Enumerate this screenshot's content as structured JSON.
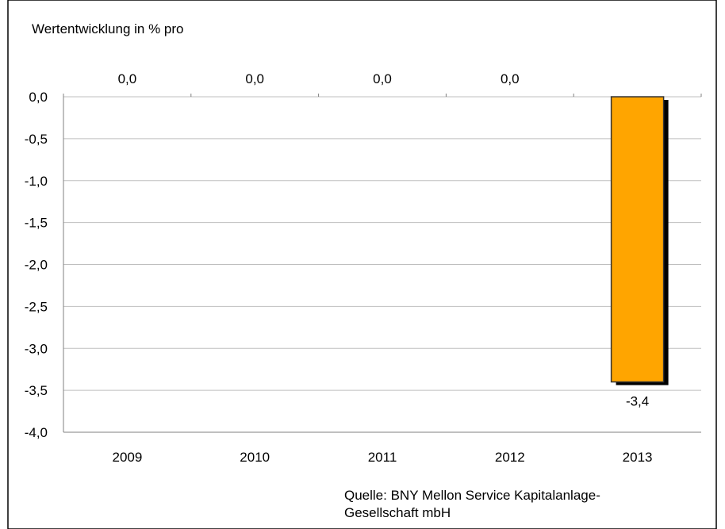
{
  "chart_data": {
    "type": "bar",
    "title": "",
    "ylabel": "Wertentwicklung in % pro",
    "xlabel": "",
    "categories": [
      "2009",
      "2010",
      "2011",
      "2012",
      "2013"
    ],
    "series": [
      {
        "values": [
          0.0,
          0.0,
          0.0,
          0.0,
          -3.4
        ]
      }
    ],
    "data_labels": [
      "0,0",
      "0,0",
      "0,0",
      "0,0",
      "-3,4"
    ],
    "ylim": [
      -4.0,
      0.0
    ],
    "yticks": [
      0.0,
      -0.5,
      -1.0,
      -1.5,
      -2.0,
      -2.5,
      -3.0,
      -3.5,
      -4.0
    ],
    "ytick_labels": [
      "0,0",
      "-0,5",
      "-1,0",
      "-1,5",
      "-2,0",
      "-2,5",
      "-3,0",
      "-3,5",
      "-4,0"
    ],
    "grid": true,
    "legend": "none",
    "colors": {
      "bar": "#FFA500",
      "shadow": "#000000",
      "grid": "#BFBFBF"
    }
  },
  "source_note": {
    "line1": "Quelle: BNY Mellon Service Kapitalanlage-",
    "line2": "Gesellschaft mbH"
  }
}
